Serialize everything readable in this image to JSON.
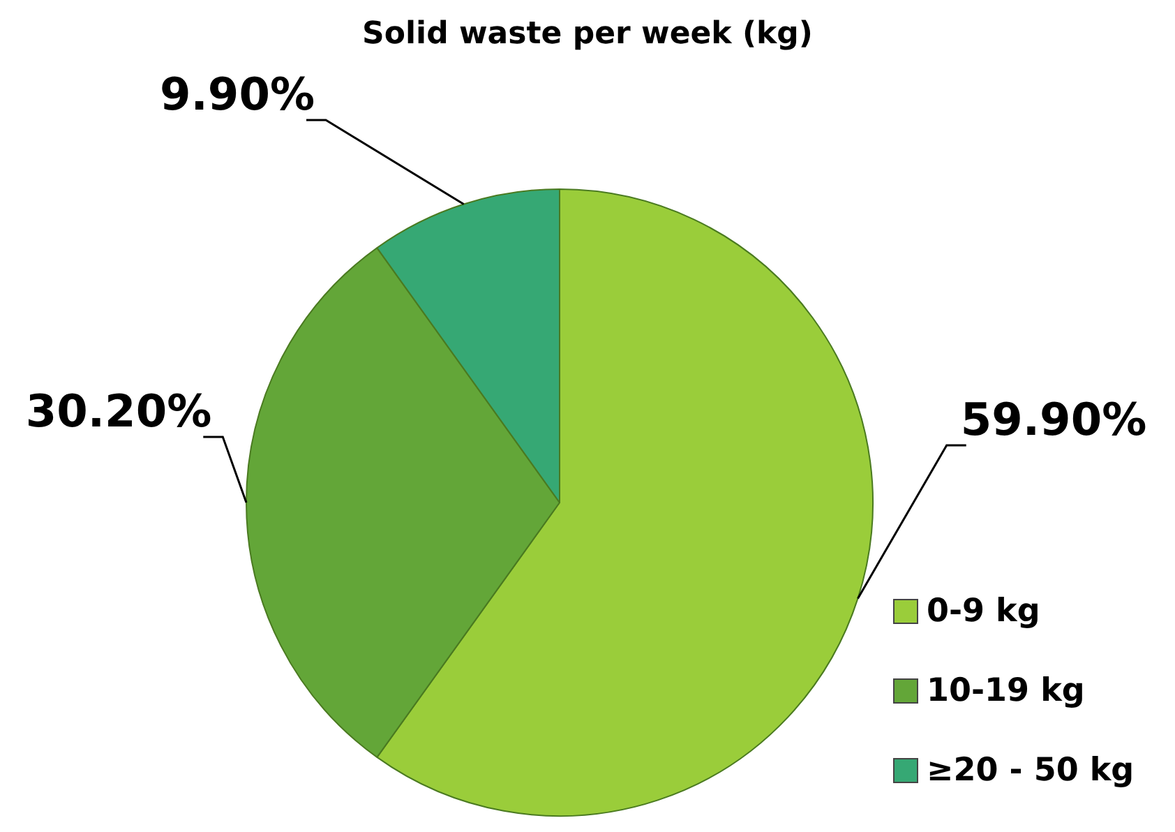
{
  "chart_data": {
    "type": "pie",
    "title": "Solid waste per week (kg)",
    "categories": [
      "0-9 kg",
      "10-19 kg",
      "≥20 - 50 kg"
    ],
    "values": [
      59.9,
      30.2,
      9.9
    ],
    "colors": [
      "#9acd3a",
      "#63a638",
      "#36a874"
    ],
    "value_labels": [
      "59.90%",
      "30.20%",
      "9.90%"
    ],
    "legend": "bottom right"
  }
}
